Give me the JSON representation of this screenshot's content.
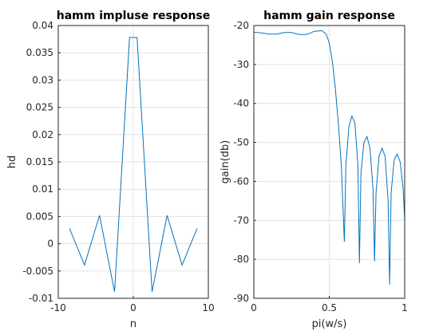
{
  "chart_data": [
    {
      "type": "line",
      "title": "hamm impluse response",
      "xlabel": "n",
      "ylabel": "hd",
      "xlim": [
        -10,
        10
      ],
      "ylim": [
        -0.01,
        0.04
      ],
      "xticks": [
        "-10",
        "0",
        "10"
      ],
      "yticks": [
        "0.04",
        "0.035",
        "0.03",
        "0.025",
        "0.02",
        "0.015",
        "0.01",
        "0.005",
        "0",
        "-0.005",
        "-0.01"
      ],
      "grid": true,
      "series": [
        {
          "color": "#0072bd",
          "x": [
            -8.5,
            -6.5,
            -4.5,
            -2.5,
            -0.5,
            0.5,
            2.5,
            4.5,
            6.5,
            8.5
          ],
          "y": [
            0.0028,
            -0.0039,
            0.0052,
            -0.0088,
            0.0378,
            0.0378,
            -0.0088,
            0.0052,
            -0.0039,
            0.0028
          ]
        }
      ]
    },
    {
      "type": "line",
      "title": "hamm gain response",
      "xlabel": "pi(w/s)",
      "ylabel": "gain(db)",
      "xlim": [
        0,
        1
      ],
      "ylim": [
        -90,
        -20
      ],
      "xticks": [
        "0",
        "0.5",
        "1"
      ],
      "yticks": [
        "-20",
        "-30",
        "-40",
        "-50",
        "-60",
        "-70",
        "-80",
        "-90"
      ],
      "grid": true,
      "series": [
        {
          "color": "#0072bd",
          "x": [
            0,
            0.05,
            0.1,
            0.15,
            0.2,
            0.25,
            0.3,
            0.35,
            0.4,
            0.45,
            0.48,
            0.5,
            0.52,
            0.54,
            0.56,
            0.58,
            0.6,
            0.61,
            0.63,
            0.65,
            0.67,
            0.69,
            0.7,
            0.71,
            0.73,
            0.75,
            0.77,
            0.79,
            0.8,
            0.81,
            0.83,
            0.85,
            0.87,
            0.89,
            0.9,
            0.91,
            0.93,
            0.95,
            0.97,
            0.99,
            1.0
          ],
          "y": [
            -21.7,
            -21.9,
            -22.2,
            -22.2,
            -21.8,
            -21.8,
            -22.3,
            -22.3,
            -21.5,
            -21.3,
            -22.2,
            -24.5,
            -29.0,
            -36.0,
            -45.0,
            -56.0,
            -75.5,
            -56.0,
            -46.0,
            -43.2,
            -45.0,
            -56.0,
            -81.0,
            -58.0,
            -50.0,
            -48.5,
            -51.5,
            -62.0,
            -80.5,
            -63.0,
            -53.5,
            -51.5,
            -53.5,
            -65.0,
            -86.5,
            -63.0,
            -54.5,
            -53.0,
            -55.0,
            -62.0,
            -70.0
          ]
        }
      ]
    }
  ]
}
